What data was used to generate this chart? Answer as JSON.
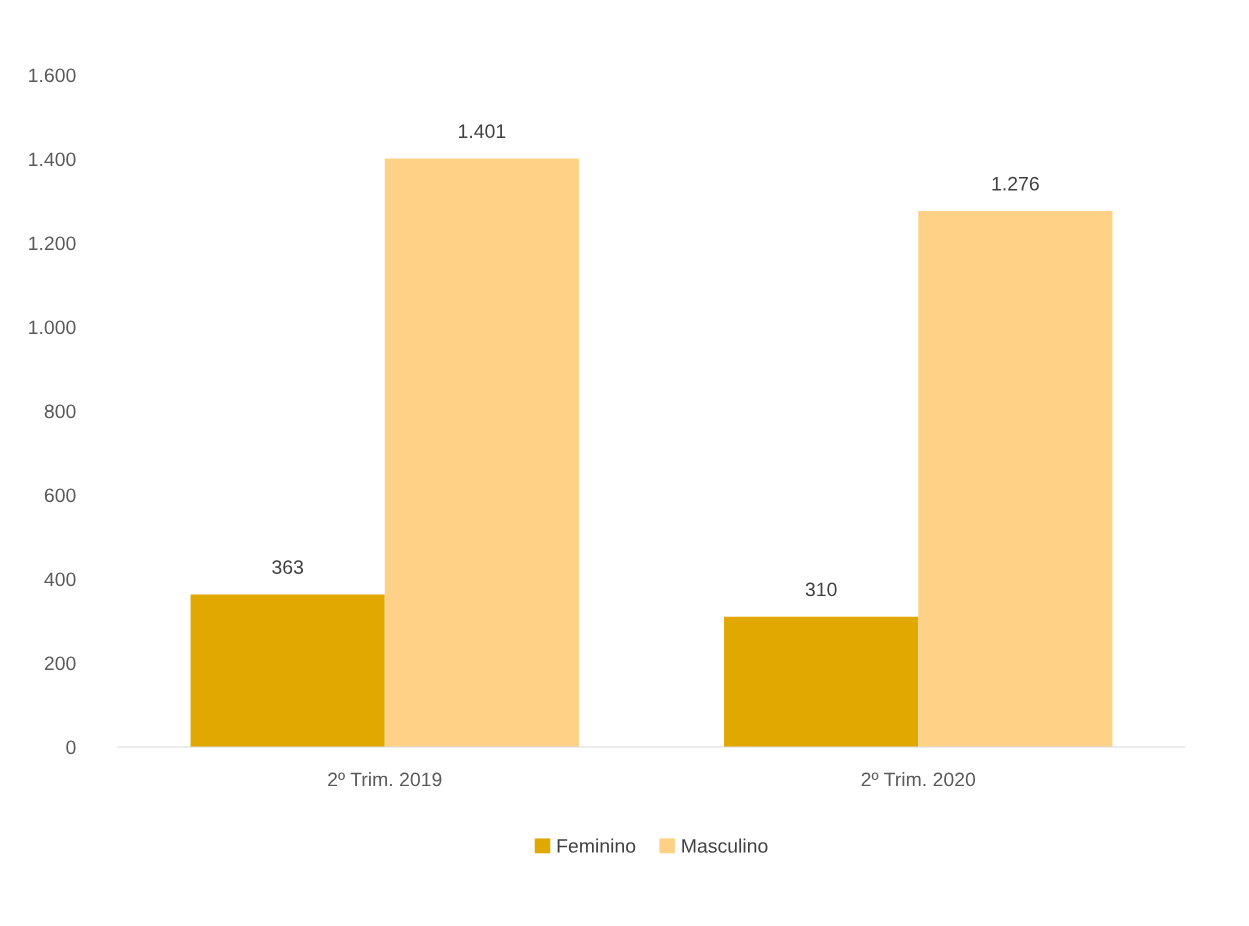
{
  "chart_data": {
    "type": "bar",
    "categories": [
      "2º Trim. 2019",
      "2º Trim. 2020"
    ],
    "series": [
      {
        "name": "Feminino",
        "color": "#e0a800",
        "values": [
          363,
          310
        ],
        "value_labels": [
          "363",
          "310"
        ]
      },
      {
        "name": "Masculino",
        "color": "#ffd186",
        "values": [
          1401,
          1276
        ],
        "value_labels": [
          "1.401",
          "1.276"
        ]
      }
    ],
    "ylim": [
      0,
      1600
    ],
    "yticks": [
      0,
      200,
      400,
      600,
      800,
      {
        "value": 1000,
        "label": "1.000"
      },
      {
        "value": 1200,
        "label": "1.200"
      },
      {
        "value": 1400,
        "label": "1.400"
      },
      {
        "value": 1600,
        "label": "1.600"
      }
    ],
    "grid": false,
    "legend": "bottom"
  }
}
